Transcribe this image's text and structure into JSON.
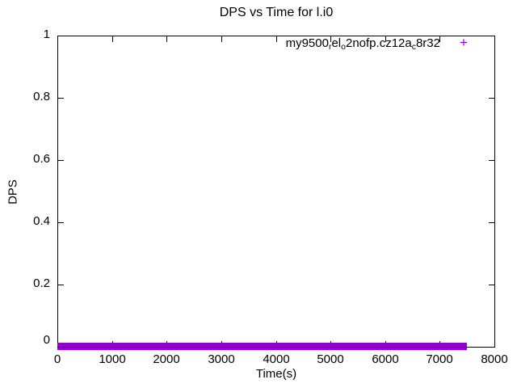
{
  "chart_data": {
    "type": "scatter",
    "title": "DPS vs Time for l.i0",
    "xlabel": "Time(s)",
    "ylabel": "DPS",
    "xlim": [
      0,
      8000
    ],
    "ylim": [
      0,
      1
    ],
    "xticks": [
      0,
      1000,
      2000,
      3000,
      4000,
      5000,
      6000,
      7000,
      8000
    ],
    "yticks": [
      0,
      0.2,
      0.4,
      0.6,
      0.8,
      1
    ],
    "grid": false,
    "legend": {
      "position": "top-right-inside",
      "marker_glyph": "+"
    },
    "series": [
      {
        "name": "my9500_rel_o2nofp.cz12a_c8r32",
        "display_segments": [
          {
            "text": "my9500"
          },
          {
            "text": "r",
            "sub": true
          },
          {
            "text": "el"
          },
          {
            "text": "o",
            "sub": true
          },
          {
            "text": "2nofp.cz12a"
          },
          {
            "text": "c",
            "sub": true
          },
          {
            "text": "8r32"
          }
        ],
        "marker": "plus",
        "color": "#9400d3",
        "points_summary": {
          "y_value": 0,
          "x_start": 0,
          "x_end": 7500,
          "description": "dense overlapping + markers at DPS=0 from t=0 to t=7500s forming a solid band"
        }
      }
    ]
  }
}
